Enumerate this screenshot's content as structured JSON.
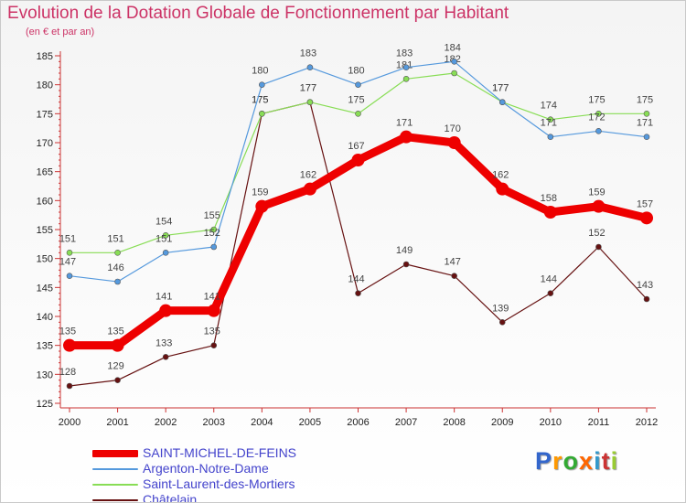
{
  "title": "Evolution de la Dotation Globale de Fonctionnement par Habitant",
  "subtitle": "(en € et par an)",
  "chart_data": {
    "type": "line",
    "title": "Evolution de la Dotation Globale de Fonctionnement par Habitant",
    "ylabel": "(en € et par an)",
    "xlabel": "",
    "ylim": [
      125,
      185
    ],
    "yticks": [
      "125",
      "130",
      "135",
      "140",
      "145",
      "150",
      "155",
      "160",
      "165",
      "170",
      "175",
      "180",
      "185"
    ],
    "categories": [
      "2000",
      "2001",
      "2002",
      "2003",
      "2004",
      "2005",
      "2006",
      "2007",
      "2008",
      "2009",
      "2010",
      "2011",
      "2012"
    ],
    "series": [
      {
        "name": "Châtelain",
        "color": "#661111",
        "values": [
          128,
          129,
          133,
          135,
          175,
          177,
          144,
          149,
          147,
          139,
          144,
          152,
          143
        ]
      },
      {
        "name": "Saint-Laurent-des-Mortiers",
        "color": "#88dd55",
        "values": [
          151,
          151,
          154,
          155,
          175,
          177,
          175,
          181,
          182,
          177,
          174,
          175,
          175
        ]
      },
      {
        "name": "Argenton-Notre-Dame",
        "color": "#5599dd",
        "values": [
          147,
          146,
          151,
          152,
          180,
          183,
          180,
          183,
          184,
          177,
          171,
          172,
          171
        ]
      },
      {
        "name": "SAINT-MICHEL-DE-FEINS",
        "color": "#ee0000",
        "values": [
          135,
          135,
          141,
          141,
          159,
          162,
          167,
          171,
          170,
          162,
          158,
          159,
          157
        ]
      }
    ],
    "legend": [
      "SAINT-MICHEL-DE-FEINS",
      "Argenton-Notre-Dame",
      "Saint-Laurent-des-Mortiers",
      "Châtelain"
    ],
    "legend_position": "bottom-left",
    "grid": false
  },
  "logo": {
    "text": [
      "P",
      "r",
      "o",
      "x",
      "i",
      "t",
      "i"
    ],
    "colors": [
      "#3366cc",
      "#ff9900",
      "#33aa33",
      "#ff6600",
      "#3399cc",
      "#cc3333",
      "#99cc33"
    ]
  }
}
